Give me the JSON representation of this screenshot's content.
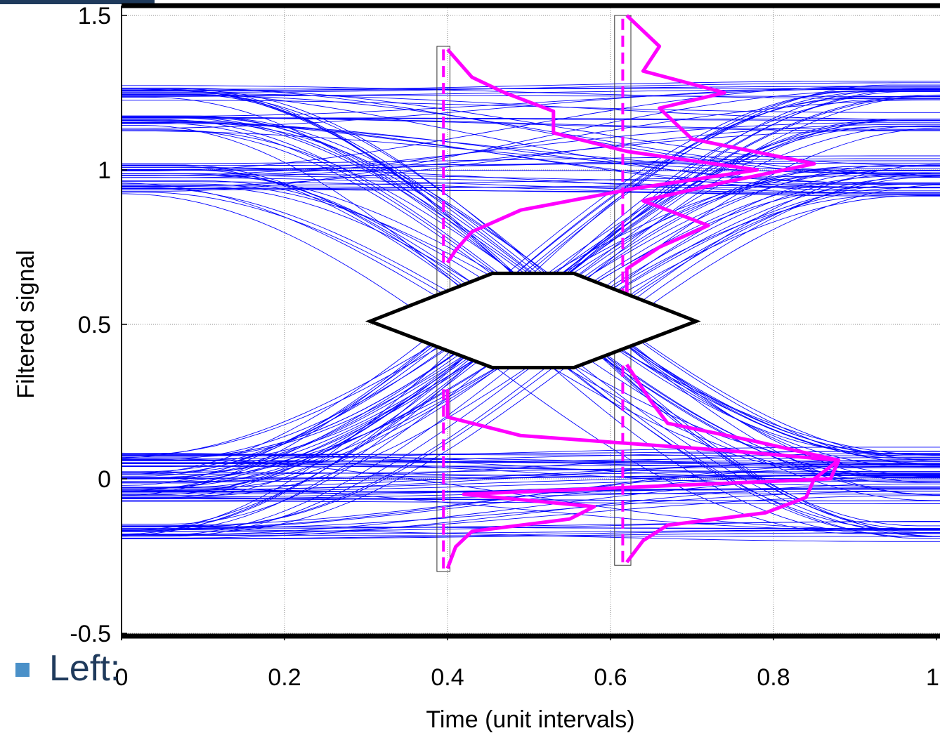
{
  "slide": {
    "bullet_text": "Left:"
  },
  "chart_data": {
    "type": "line",
    "subtype": "eye-diagram",
    "title": "",
    "xlabel": "Time (unit intervals)",
    "ylabel": "Filtered signal",
    "xlim": [
      0,
      1
    ],
    "ylim": [
      -0.55,
      1.52
    ],
    "x_ticks": [
      {
        "value": 0,
        "label": "0"
      },
      {
        "value": 0.2,
        "label": "0.2"
      },
      {
        "value": 0.4,
        "label": "0.4"
      },
      {
        "value": 0.6,
        "label": "0.6"
      },
      {
        "value": 0.8,
        "label": "0.8"
      },
      {
        "value": 1,
        "label": "1"
      }
    ],
    "y_ticks": [
      {
        "value": -0.5,
        "label": "-0.5"
      },
      {
        "value": 0,
        "label": "0"
      },
      {
        "value": 0.5,
        "label": "0.5"
      },
      {
        "value": 1,
        "label": "1"
      },
      {
        "value": 1.5,
        "label": "1.5"
      }
    ],
    "grid": true,
    "colors": {
      "traces": "#0000ff",
      "histograms": "#ff00ff",
      "mask": "#000000"
    },
    "eye_levels": [
      -0.17,
      -0.05,
      0.0,
      0.06,
      0.94,
      1.0,
      1.15,
      1.25
    ],
    "mask": {
      "x": [
        0.305,
        0.455,
        0.555,
        0.705,
        0.555,
        0.455,
        0.305
      ],
      "y": [
        0.51,
        0.665,
        0.665,
        0.51,
        0.36,
        0.36,
        0.51
      ]
    },
    "sample_lines": [
      {
        "x": 0.395,
        "y_range": [
          -0.29,
          0.29
        ]
      },
      {
        "x": 0.395,
        "y_range": [
          0.7,
          1.39
        ]
      },
      {
        "x": 0.615,
        "y_range": [
          -0.27,
          0.37
        ]
      },
      {
        "x": 0.615,
        "y_range": [
          0.58,
          1.5
        ]
      }
    ],
    "sample_boxes": [
      {
        "x": [
          0.387,
          0.403
        ],
        "y": [
          -0.3,
          1.4
        ]
      },
      {
        "x": [
          0.605,
          0.625
        ],
        "y": [
          -0.28,
          1.5
        ]
      }
    ],
    "histograms": [
      {
        "base_x": 0.395,
        "y": [
          1.39,
          1.3,
          1.25,
          1.19,
          1.12,
          1.06,
          1.0,
          0.94,
          0.87,
          0.8,
          0.74,
          0.7
        ],
        "x": [
          0.4,
          0.43,
          0.47,
          0.53,
          0.53,
          0.62,
          0.78,
          0.63,
          0.49,
          0.43,
          0.41,
          0.4
        ]
      },
      {
        "base_x": 0.395,
        "y": [
          0.29,
          0.2,
          0.14,
          0.09,
          0.06,
          0.0,
          -0.05,
          -0.09,
          -0.13,
          -0.17,
          -0.22,
          -0.29
        ],
        "x": [
          0.4,
          0.4,
          0.49,
          0.75,
          0.88,
          0.87,
          0.42,
          0.58,
          0.55,
          0.43,
          0.41,
          0.4
        ]
      },
      {
        "base_x": 0.615,
        "y": [
          1.5,
          1.4,
          1.32,
          1.25,
          1.2,
          1.1,
          1.02,
          0.96,
          0.9,
          0.82,
          0.75,
          0.68,
          0.6
        ],
        "x": [
          0.62,
          0.66,
          0.64,
          0.74,
          0.66,
          0.7,
          0.85,
          0.74,
          0.64,
          0.72,
          0.66,
          0.62,
          0.62
        ]
      },
      {
        "base_x": 0.615,
        "y": [
          0.37,
          0.25,
          0.18,
          0.12,
          0.06,
          0.0,
          -0.06,
          -0.11,
          -0.15,
          -0.2,
          -0.27
        ],
        "x": [
          0.62,
          0.65,
          0.67,
          0.78,
          0.88,
          0.85,
          0.84,
          0.79,
          0.67,
          0.64,
          0.62
        ]
      }
    ]
  }
}
